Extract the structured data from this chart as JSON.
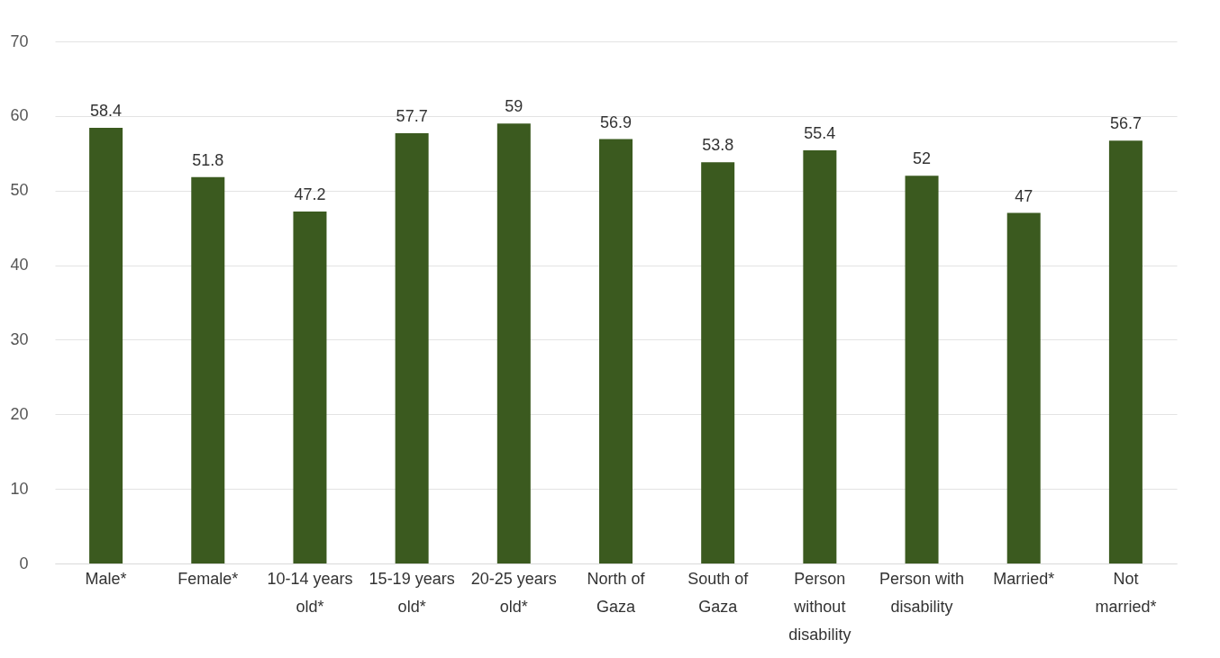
{
  "chart_data": {
    "type": "bar",
    "categories": [
      "Male*",
      "Female*",
      "10-14 years old*",
      "15-19 years old*",
      "20-25 years old*",
      "North of Gaza",
      "South of Gaza",
      "Person without disability",
      "Person with disability",
      "Married*",
      "Not married*"
    ],
    "values": [
      58.4,
      51.8,
      47.2,
      57.7,
      59,
      56.9,
      53.8,
      55.4,
      52,
      47,
      56.7
    ],
    "color": "#3b5a1f",
    "ylim": [
      0,
      70
    ],
    "yticks": [
      0,
      10,
      20,
      30,
      40,
      50,
      60,
      70
    ],
    "grid": "y",
    "data_labels": true
  }
}
